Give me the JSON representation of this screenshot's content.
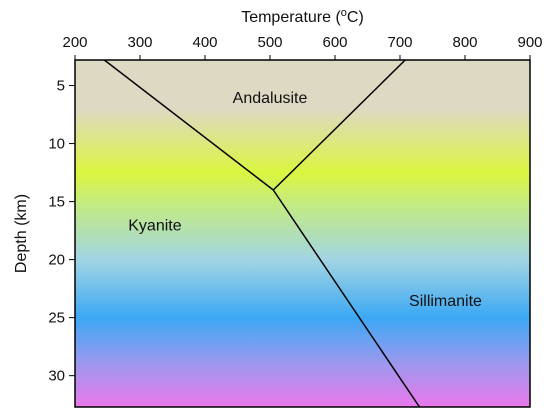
{
  "chart_data": {
    "type": "line",
    "title": "",
    "xlabel": "Temperature (°C)",
    "xlabel_parts": {
      "prefix": "Temperature (",
      "superscript": "o",
      "suffix": "C)"
    },
    "ylabel": "Depth (km)",
    "x_axis_position": "top",
    "y_inverted": true,
    "xlim": [
      200,
      900
    ],
    "ylim": [
      2.8,
      32.7
    ],
    "xticks": [
      200,
      300,
      400,
      500,
      600,
      700,
      800,
      900
    ],
    "yticks": [
      5,
      10,
      15,
      20,
      25,
      30
    ],
    "grid": false,
    "background_gradient": [
      {
        "depth": 2.8,
        "color": "#ddd9c3"
      },
      {
        "depth": 7.0,
        "color": "#ddd9c3"
      },
      {
        "depth": 12.5,
        "color": "#dcf540"
      },
      {
        "depth": 15.0,
        "color": "#c6ec7c"
      },
      {
        "depth": 20.0,
        "color": "#a2d5e3"
      },
      {
        "depth": 25.0,
        "color": "#3ca8f4"
      },
      {
        "depth": 29.0,
        "color": "#9e98ee"
      },
      {
        "depth": 32.7,
        "color": "#ea78ec"
      }
    ],
    "series": [
      {
        "points": [
          [
            245,
            2.8
          ],
          [
            505,
            14.0
          ]
        ]
      },
      {
        "points": [
          [
            708,
            2.8
          ],
          [
            505,
            14.0
          ]
        ]
      },
      {
        "points": [
          [
            505,
            14.0
          ],
          [
            730,
            32.7
          ]
        ]
      }
    ],
    "annotations": [
      {
        "text": "Andalusite",
        "x": 500,
        "y": 6.5
      },
      {
        "text": "Kyanite",
        "x": 323,
        "y": 17.5
      },
      {
        "text": "Sillimanite",
        "x": 770,
        "y": 24.0
      }
    ],
    "line_color": "#000000"
  }
}
